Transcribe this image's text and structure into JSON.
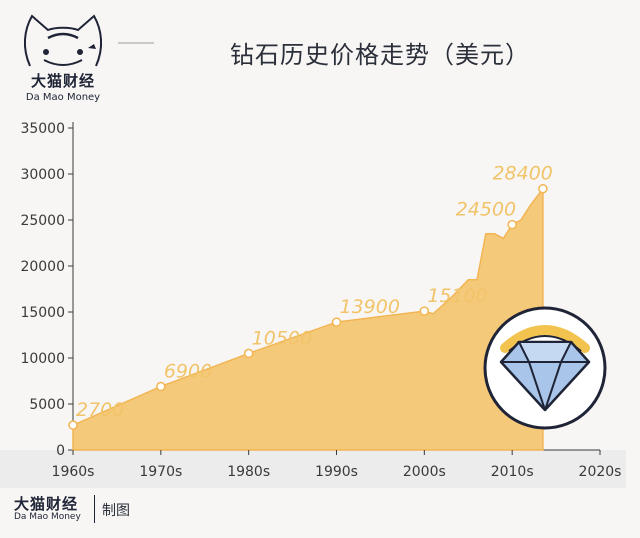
{
  "brand": {
    "name_cn": "大猫财经",
    "name_en": "Da Mao Money"
  },
  "title": "钻石历史价格走势（美元）",
  "footer": {
    "brand_cn": "大猫财经",
    "brand_en": "Da Mao Money",
    "note": "制图"
  },
  "colors": {
    "area": "#f5c97a",
    "line": "#f2b553",
    "label": "#f2c46a",
    "axis": "#3a3a3a",
    "band": "#ececec"
  },
  "icon": "diamond-icon",
  "chart_data": {
    "type": "area",
    "title": "钻石历史价格走势（美元）",
    "xlabel": "",
    "ylabel": "",
    "x_ticks": [
      "1960s",
      "1970s",
      "1980s",
      "1990s",
      "2000s",
      "2010s",
      "2020s"
    ],
    "y_ticks": [
      "0",
      "5000",
      "10000",
      "15000",
      "20000",
      "25000",
      "30000",
      "35000"
    ],
    "ylim": [
      0,
      35000
    ],
    "xlim": [
      1960,
      2020
    ],
    "grid": false,
    "series": [
      {
        "values": [
          [
            1960,
            2700
          ],
          [
            1970,
            6900
          ],
          [
            1980,
            10500
          ],
          [
            1990,
            13900
          ],
          [
            2000,
            15100
          ],
          [
            2001,
            14800
          ],
          [
            2003,
            16500
          ],
          [
            2005,
            18500
          ],
          [
            2006,
            18500
          ],
          [
            2007,
            23500
          ],
          [
            2008,
            23500
          ],
          [
            2009,
            23000
          ],
          [
            2010,
            24500
          ],
          [
            2011,
            25000
          ],
          [
            2012,
            26500
          ],
          [
            2013.5,
            28400
          ]
        ]
      }
    ],
    "labeled_points": [
      {
        "x": 1960,
        "y": 2700,
        "label": "2700"
      },
      {
        "x": 1970,
        "y": 6900,
        "label": "6900"
      },
      {
        "x": 1980,
        "y": 10500,
        "label": "10500"
      },
      {
        "x": 1990,
        "y": 13900,
        "label": "13900"
      },
      {
        "x": 2000,
        "y": 15100,
        "label": "15100"
      },
      {
        "x": 2010,
        "y": 24500,
        "label": "24500"
      },
      {
        "x": 2013.5,
        "y": 28400,
        "label": "28400"
      }
    ]
  }
}
